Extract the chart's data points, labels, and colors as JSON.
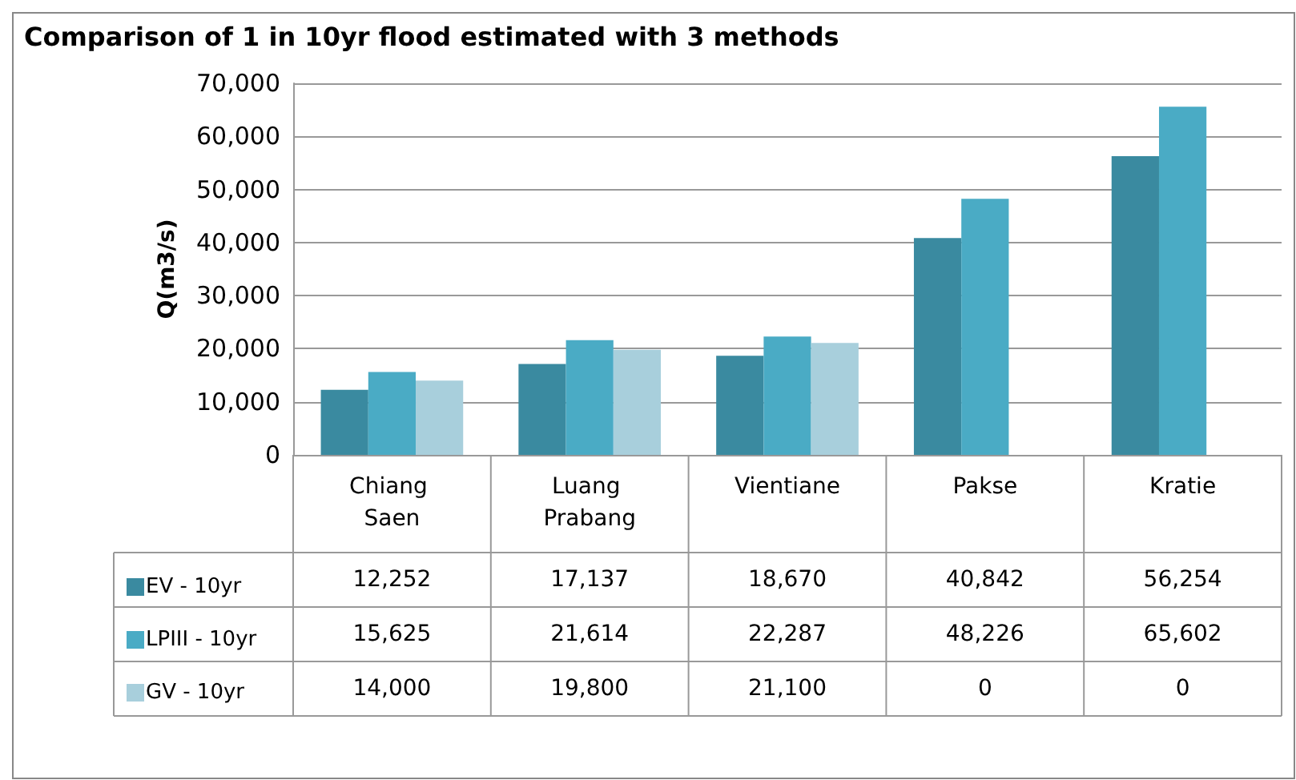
{
  "chart_data": {
    "type": "bar",
    "title": "Comparison of 1 in 10yr flood estimated with 3 methods",
    "ylabel": "Q(m3/s)",
    "categories": [
      "Chiang Saen",
      "Luang Prabang",
      "Vientiane",
      "Pakse",
      "Kratie"
    ],
    "series": [
      {
        "name": "EV - 10yr",
        "color": "#3a8aa0",
        "values": [
          12252,
          17137,
          18670,
          40842,
          56254
        ],
        "value_labels": [
          "12,252",
          "17,137",
          "18,670",
          "40,842",
          "56,254"
        ]
      },
      {
        "name": "LPIII - 10yr",
        "color": "#4aabc5",
        "values": [
          15625,
          21614,
          22287,
          48226,
          65602
        ],
        "value_labels": [
          "15,625",
          "21,614",
          "22,287",
          "48,226",
          "65,602"
        ]
      },
      {
        "name": "GV - 10yr",
        "color": "#a8cfdc",
        "values": [
          14000,
          19800,
          21100,
          0,
          0
        ],
        "value_labels": [
          "14,000",
          "19,800",
          "21,100",
          "0",
          "0"
        ]
      }
    ],
    "ylim": [
      0,
      70000
    ],
    "yticks": [
      0,
      {
        "value": 10000,
        "label": "10,000"
      },
      {
        "value": 20000,
        "label": "20,000"
      },
      {
        "value": 30000,
        "label": "30,000"
      },
      {
        "value": 40000,
        "label": "40,000"
      },
      {
        "value": 50000,
        "label": "50,000"
      },
      {
        "value": 60000,
        "label": "60,000"
      },
      {
        "value": 70000,
        "label": "70,000"
      }
    ],
    "grid": "y",
    "legend": "bottom left"
  }
}
